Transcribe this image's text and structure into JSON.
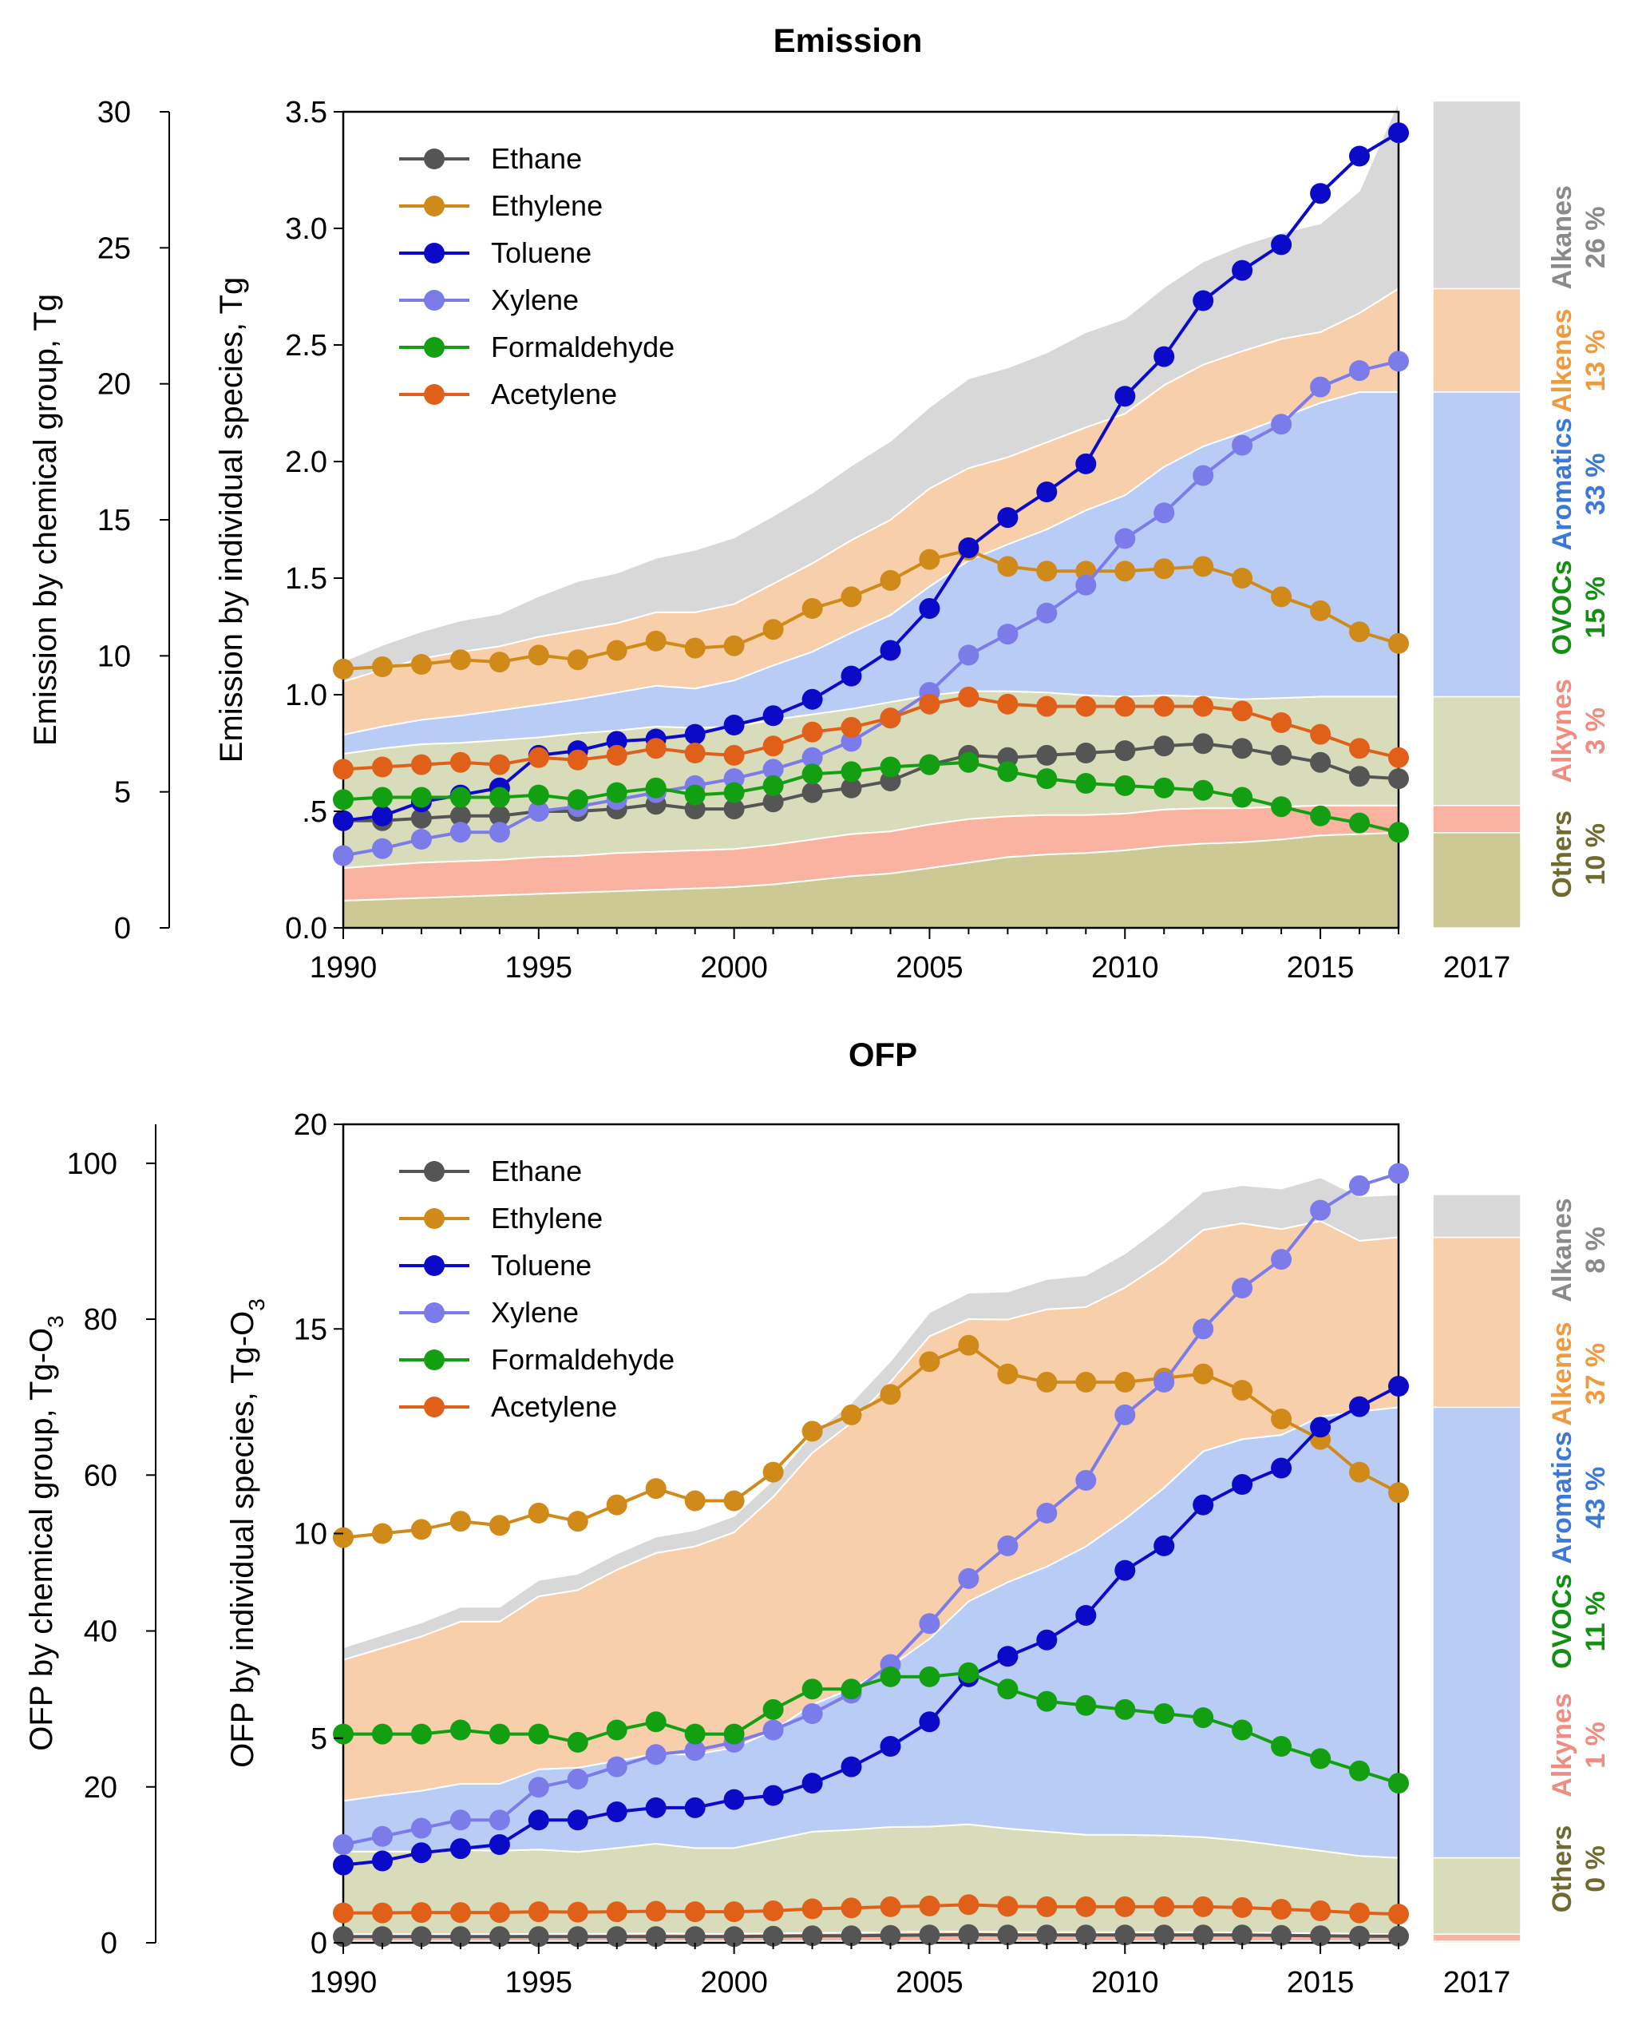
{
  "chart_data": [
    {
      "type": "line",
      "title": "Emission",
      "x": [
        1990,
        1991,
        1992,
        1993,
        1994,
        1995,
        1996,
        1997,
        1998,
        1999,
        2000,
        2001,
        2002,
        2003,
        2004,
        2005,
        2006,
        2007,
        2008,
        2009,
        2010,
        2011,
        2012,
        2013,
        2014,
        2015,
        2016,
        2017
      ],
      "xticks": [
        "1990",
        "1995",
        "2000",
        "2005",
        "2010",
        "2015"
      ],
      "extra_xtick": "2017",
      "ylabel": "Emission by individual species, Tg",
      "ylim": [
        0,
        3.5
      ],
      "yticks": [
        "0.0",
        ".5",
        "1.0",
        "1.5",
        "2.0",
        "2.5",
        "3.0",
        "3.5"
      ],
      "ylabel_group": "Emission by chemical group, Tg",
      "ylim_group": [
        0,
        30
      ],
      "yticks_group": [
        "0",
        "5",
        "10",
        "15",
        "20",
        "25",
        "30"
      ],
      "series": [
        {
          "name": "Ethane",
          "color": "#555555",
          "values": [
            0.46,
            0.46,
            0.47,
            0.48,
            0.48,
            0.5,
            0.5,
            0.51,
            0.53,
            0.51,
            0.51,
            0.54,
            0.58,
            0.6,
            0.63,
            0.7,
            0.74,
            0.73,
            0.74,
            0.75,
            0.76,
            0.78,
            0.79,
            0.77,
            0.74,
            0.71,
            0.65,
            0.64
          ]
        },
        {
          "name": "Ethylene",
          "color": "#D08A1A",
          "values": [
            1.11,
            1.12,
            1.13,
            1.15,
            1.14,
            1.17,
            1.15,
            1.19,
            1.23,
            1.2,
            1.21,
            1.28,
            1.37,
            1.42,
            1.49,
            1.58,
            1.62,
            1.55,
            1.53,
            1.53,
            1.53,
            1.54,
            1.55,
            1.5,
            1.42,
            1.36,
            1.27,
            1.22
          ]
        },
        {
          "name": "Toluene",
          "color": "#0A0AC8",
          "values": [
            0.46,
            0.48,
            0.54,
            0.57,
            0.6,
            0.74,
            0.76,
            0.8,
            0.81,
            0.83,
            0.87,
            0.91,
            0.98,
            1.08,
            1.19,
            1.37,
            1.63,
            1.76,
            1.87,
            1.99,
            2.28,
            2.45,
            2.69,
            2.82,
            2.93,
            3.15,
            3.31,
            3.41
          ]
        },
        {
          "name": "Xylene",
          "color": "#7B7BEA",
          "values": [
            0.31,
            0.34,
            0.38,
            0.41,
            0.41,
            0.5,
            0.52,
            0.55,
            0.58,
            0.61,
            0.64,
            0.68,
            0.73,
            0.8,
            0.9,
            1.01,
            1.17,
            1.26,
            1.35,
            1.47,
            1.67,
            1.78,
            1.94,
            2.07,
            2.16,
            2.32,
            2.39,
            2.43
          ]
        },
        {
          "name": "Formaldehyde",
          "color": "#12A012",
          "values": [
            0.55,
            0.56,
            0.56,
            0.56,
            0.56,
            0.57,
            0.55,
            0.58,
            0.6,
            0.57,
            0.58,
            0.61,
            0.66,
            0.67,
            0.69,
            0.7,
            0.71,
            0.67,
            0.64,
            0.62,
            0.61,
            0.6,
            0.59,
            0.56,
            0.52,
            0.48,
            0.45,
            0.41
          ]
        },
        {
          "name": "Acetylene",
          "color": "#E0601A",
          "values": [
            0.68,
            0.69,
            0.7,
            0.71,
            0.7,
            0.73,
            0.72,
            0.74,
            0.77,
            0.75,
            0.74,
            0.78,
            0.84,
            0.86,
            0.9,
            0.96,
            0.99,
            0.96,
            0.95,
            0.95,
            0.95,
            0.95,
            0.95,
            0.93,
            0.88,
            0.83,
            0.77,
            0.73
          ]
        }
      ],
      "group_series": [
        {
          "name": "Others",
          "color": "#CDC994",
          "values": [
            1.0,
            1.05,
            1.1,
            1.15,
            1.2,
            1.25,
            1.3,
            1.35,
            1.4,
            1.45,
            1.5,
            1.6,
            1.75,
            1.9,
            2.0,
            2.2,
            2.4,
            2.6,
            2.7,
            2.75,
            2.85,
            3.0,
            3.1,
            3.15,
            3.25,
            3.4,
            3.45,
            3.5
          ]
        },
        {
          "name": "Alkynes",
          "color": "#F9B3A0",
          "values": [
            1.2,
            1.25,
            1.3,
            1.3,
            1.3,
            1.35,
            1.35,
            1.4,
            1.4,
            1.4,
            1.4,
            1.45,
            1.5,
            1.55,
            1.55,
            1.6,
            1.6,
            1.5,
            1.45,
            1.4,
            1.35,
            1.35,
            1.3,
            1.25,
            1.2,
            1.1,
            1.05,
            1.0
          ]
        },
        {
          "name": "OVOCs",
          "color": "#D8DCBA",
          "values": [
            4.2,
            4.3,
            4.35,
            4.35,
            4.4,
            4.4,
            4.5,
            4.5,
            4.6,
            4.5,
            4.5,
            4.6,
            4.6,
            4.6,
            4.75,
            4.75,
            4.7,
            4.6,
            4.5,
            4.4,
            4.3,
            4.2,
            4.1,
            4.0,
            4.0,
            4.0,
            4.0,
            4.0
          ]
        },
        {
          "name": "Aromatics",
          "color": "#B9CCF5",
          "values": [
            0.7,
            0.8,
            0.9,
            1.0,
            1.1,
            1.2,
            1.25,
            1.4,
            1.5,
            1.45,
            1.7,
            2.0,
            2.3,
            2.8,
            3.2,
            4.0,
            4.8,
            5.4,
            6.0,
            6.8,
            7.4,
            8.4,
            9.2,
            9.8,
            10.3,
            10.8,
            11.2,
            11.2
          ]
        },
        {
          "name": "Alkenes",
          "color": "#F7CFAA",
          "values": [
            1.95,
            2.1,
            2.25,
            2.35,
            2.35,
            2.5,
            2.55,
            2.55,
            2.7,
            2.8,
            2.8,
            3.0,
            3.25,
            3.4,
            3.5,
            3.6,
            3.4,
            3.2,
            3.2,
            3.05,
            3.0,
            3.0,
            3.0,
            3.0,
            2.9,
            2.6,
            2.9,
            3.8
          ]
        },
        {
          "name": "Alkanes",
          "color": "#D8D8D8",
          "values": [
            0.75,
            0.9,
            1.0,
            1.15,
            1.2,
            1.5,
            1.8,
            1.85,
            2.0,
            2.3,
            2.45,
            2.5,
            2.6,
            2.75,
            2.9,
            3.0,
            3.3,
            3.3,
            3.3,
            3.5,
            3.5,
            3.6,
            3.8,
            3.9,
            3.9,
            4.0,
            4.5,
            6.9
          ]
        }
      ],
      "share_2017": [
        {
          "name": "Others",
          "pct": "10 %",
          "color": "#6E6A30"
        },
        {
          "name": "Alkynes",
          "pct": "3 %",
          "color": "#F08C80"
        },
        {
          "name": "OVOCs",
          "pct": "15 %",
          "color": "#139013"
        },
        {
          "name": "Aromatics",
          "pct": "33 %",
          "color": "#3C78D8"
        },
        {
          "name": "Alkenes",
          "pct": "13 %",
          "color": "#F09A40"
        },
        {
          "name": "Alkanes",
          "pct": "26 %",
          "color": "#8A8A8A"
        }
      ]
    },
    {
      "type": "line",
      "title": "OFP",
      "x": [
        1990,
        1991,
        1992,
        1993,
        1994,
        1995,
        1996,
        1997,
        1998,
        1999,
        2000,
        2001,
        2002,
        2003,
        2004,
        2005,
        2006,
        2007,
        2008,
        2009,
        2010,
        2011,
        2012,
        2013,
        2014,
        2015,
        2016,
        2017
      ],
      "xticks": [
        "1990",
        "1995",
        "2000",
        "2005",
        "2010",
        "2015"
      ],
      "extra_xtick": "2017",
      "ylabel": "OFP by individual species, Tg-O",
      "ylabel_sub": "3",
      "ylim": [
        0,
        20
      ],
      "yticks": [
        "0",
        "5",
        "10",
        "15",
        "20"
      ],
      "ylabel_group": "OFP by chemical group, Tg-O",
      "ylabel_group_sub": "3",
      "ylim_group": [
        0,
        105
      ],
      "yticks_group": [
        "0",
        "20",
        "40",
        "60",
        "80",
        "100"
      ],
      "series": [
        {
          "name": "Ethane",
          "color": "#555555",
          "values": [
            0.15,
            0.15,
            0.15,
            0.15,
            0.15,
            0.15,
            0.15,
            0.15,
            0.15,
            0.15,
            0.15,
            0.16,
            0.17,
            0.17,
            0.18,
            0.19,
            0.2,
            0.19,
            0.19,
            0.19,
            0.19,
            0.19,
            0.19,
            0.19,
            0.18,
            0.17,
            0.16,
            0.16
          ]
        },
        {
          "name": "Ethylene",
          "color": "#D08A1A",
          "values": [
            9.9,
            10.0,
            10.1,
            10.3,
            10.2,
            10.5,
            10.3,
            10.7,
            11.1,
            10.8,
            10.8,
            11.5,
            12.5,
            12.9,
            13.4,
            14.2,
            14.6,
            13.9,
            13.7,
            13.7,
            13.7,
            13.8,
            13.9,
            13.5,
            12.8,
            12.3,
            11.5,
            11.0
          ]
        },
        {
          "name": "Toluene",
          "color": "#0A0AC8",
          "values": [
            1.9,
            2.0,
            2.2,
            2.3,
            2.4,
            3.0,
            3.0,
            3.2,
            3.3,
            3.3,
            3.5,
            3.6,
            3.9,
            4.3,
            4.8,
            5.4,
            6.5,
            7.0,
            7.4,
            8.0,
            9.1,
            9.7,
            10.7,
            11.2,
            11.6,
            12.6,
            13.1,
            13.6
          ]
        },
        {
          "name": "Xylene",
          "color": "#7B7BEA",
          "values": [
            2.4,
            2.6,
            2.8,
            3.0,
            3.0,
            3.8,
            4.0,
            4.3,
            4.6,
            4.7,
            4.9,
            5.2,
            5.6,
            6.1,
            6.8,
            7.8,
            8.9,
            9.7,
            10.5,
            11.3,
            12.9,
            13.7,
            15.0,
            16.0,
            16.7,
            17.9,
            18.5,
            18.8
          ]
        },
        {
          "name": "Formaldehyde",
          "color": "#12A012",
          "values": [
            5.1,
            5.1,
            5.1,
            5.2,
            5.1,
            5.1,
            4.9,
            5.2,
            5.4,
            5.1,
            5.1,
            5.7,
            6.2,
            6.2,
            6.5,
            6.5,
            6.6,
            6.2,
            5.9,
            5.8,
            5.7,
            5.6,
            5.5,
            5.2,
            4.8,
            4.5,
            4.2,
            3.9
          ]
        },
        {
          "name": "Acetylene",
          "color": "#E0601A",
          "values": [
            0.73,
            0.73,
            0.74,
            0.74,
            0.74,
            0.76,
            0.75,
            0.76,
            0.77,
            0.76,
            0.76,
            0.78,
            0.83,
            0.85,
            0.88,
            0.9,
            0.93,
            0.89,
            0.88,
            0.88,
            0.88,
            0.88,
            0.88,
            0.86,
            0.82,
            0.78,
            0.73,
            0.7
          ]
        }
      ],
      "group_series": [
        {
          "name": "Others",
          "color": "#CDC994",
          "values": [
            0.2,
            0.2,
            0.2,
            0.2,
            0.2,
            0.2,
            0.2,
            0.2,
            0.2,
            0.2,
            0.2,
            0.2,
            0.2,
            0.2,
            0.2,
            0.2,
            0.2,
            0.2,
            0.2,
            0.2,
            0.2,
            0.2,
            0.2,
            0.2,
            0.2,
            0.2,
            0.2,
            0.2
          ]
        },
        {
          "name": "Alkynes",
          "color": "#F9B3A0",
          "values": [
            0.9,
            0.9,
            0.9,
            0.9,
            0.9,
            0.95,
            0.95,
            0.95,
            1.0,
            0.95,
            0.95,
            1.0,
            1.05,
            1.1,
            1.15,
            1.2,
            1.2,
            1.15,
            1.15,
            1.15,
            1.15,
            1.15,
            1.15,
            1.1,
            1.05,
            1.0,
            0.95,
            0.9
          ]
        },
        {
          "name": "OVOCs",
          "color": "#D8DCBA",
          "values": [
            10.6,
            10.6,
            10.6,
            10.8,
            10.7,
            10.8,
            10.5,
            11.0,
            11.5,
            11.0,
            11.0,
            12.0,
            13.0,
            13.2,
            13.5,
            13.5,
            13.8,
            13.3,
            12.9,
            12.5,
            12.5,
            12.4,
            12.2,
            11.8,
            11.2,
            10.6,
            10.0,
            9.8
          ]
        },
        {
          "name": "Aromatics",
          "color": "#B9CCF5",
          "values": [
            6.5,
            7.2,
            7.8,
            8.5,
            8.6,
            10.3,
            10.8,
            11.2,
            11.5,
            12.0,
            12.9,
            14.0,
            16.3,
            18.1,
            20.6,
            24.1,
            28.6,
            31.6,
            34.0,
            37.0,
            40.5,
            44.6,
            49.5,
            51.5,
            52.7,
            55.7,
            57.0,
            57.8
          ]
        },
        {
          "name": "Alkenes",
          "color": "#F7CFAA",
          "values": [
            18.1,
            18.9,
            19.8,
            20.8,
            20.8,
            22.2,
            22.8,
            24.5,
            25.8,
            26.7,
            27.6,
            30.0,
            32.3,
            34.1,
            36.5,
            38.8,
            36.2,
            33.7,
            33.0,
            30.7,
            29.7,
            29.0,
            28.4,
            27.7,
            26.4,
            25.1,
            21.9,
            21.8
          ]
        },
        {
          "name": "Alkanes",
          "color": "#D8D8D8",
          "values": [
            1.6,
            1.7,
            1.8,
            1.9,
            1.9,
            2.1,
            2.1,
            2.1,
            2.1,
            2.1,
            2.1,
            2.2,
            2.4,
            2.6,
            2.7,
            3.1,
            3.4,
            3.6,
            3.9,
            4.1,
            4.4,
            4.8,
            4.9,
            4.9,
            5.2,
            5.6,
            5.7,
            5.5
          ]
        }
      ],
      "share_2017": [
        {
          "name": "Others",
          "pct": "0 %",
          "color": "#6E6A30"
        },
        {
          "name": "Alkynes",
          "pct": "1 %",
          "color": "#F08C80"
        },
        {
          "name": "OVOCs",
          "pct": "11 %",
          "color": "#139013"
        },
        {
          "name": "Aromatics",
          "pct": "43 %",
          "color": "#3C78D8"
        },
        {
          "name": "Alkenes",
          "pct": "37 %",
          "color": "#F09A40"
        },
        {
          "name": "Alkanes",
          "pct": "8 %",
          "color": "#8A8A8A"
        }
      ]
    }
  ]
}
